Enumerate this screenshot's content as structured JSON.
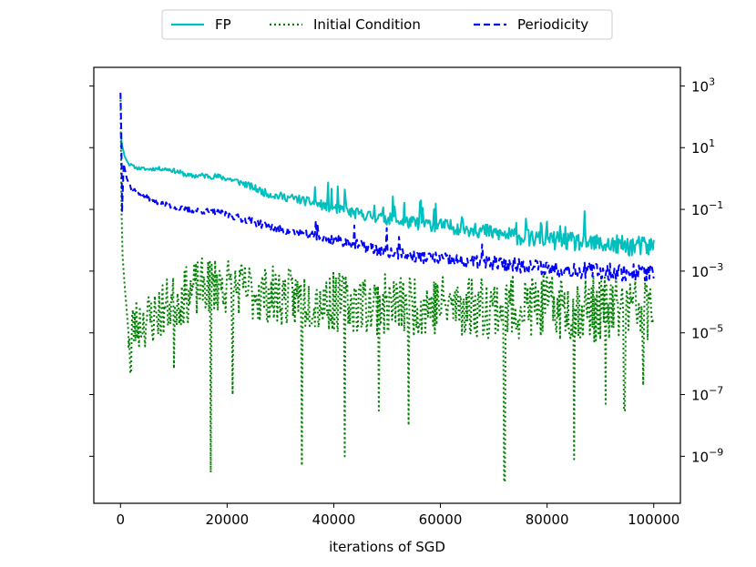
{
  "chart_data": {
    "type": "line",
    "xlabel": "iterations of SGD",
    "ylabel": "",
    "y_scale": "log",
    "y_axis_side": "right",
    "xlim": [
      -5000,
      105000
    ],
    "ylim": [
      3e-11,
      4000
    ],
    "x_ticks": [
      0,
      20000,
      40000,
      60000,
      80000,
      100000
    ],
    "x_tick_labels": [
      "0",
      "20000",
      "40000",
      "60000",
      "80000",
      "100000"
    ],
    "y_ticks": [
      -9,
      -7,
      -5,
      -3,
      -1,
      1,
      3
    ],
    "y_tick_labels": [
      {
        "base": "10",
        "exp": "−9"
      },
      {
        "base": "10",
        "exp": "−7"
      },
      {
        "base": "10",
        "exp": "−5"
      },
      {
        "base": "10",
        "exp": "−3"
      },
      {
        "base": "10",
        "exp": "−1"
      },
      {
        "base": "10",
        "exp": "1"
      },
      {
        "base": "10",
        "exp": "3"
      }
    ],
    "grid": false,
    "legend_position": "top-center, above plot",
    "series": [
      {
        "name": "FP",
        "color": "#00bfbf",
        "style": "solid",
        "points": [
          [
            0,
            30
          ],
          [
            300,
            12
          ],
          [
            800,
            5
          ],
          [
            1500,
            3
          ],
          [
            3000,
            2.2
          ],
          [
            5000,
            2
          ],
          [
            7000,
            2.1
          ],
          [
            9000,
            2
          ],
          [
            11000,
            1.6
          ],
          [
            13000,
            1.2
          ],
          [
            15000,
            1.25
          ],
          [
            17000,
            1.2
          ],
          [
            19000,
            1.1
          ],
          [
            21000,
            0.9
          ],
          [
            23000,
            0.7
          ],
          [
            25000,
            0.5
          ],
          [
            27000,
            0.35
          ],
          [
            29000,
            0.28
          ],
          [
            31000,
            0.25
          ],
          [
            33000,
            0.22
          ],
          [
            35000,
            0.18
          ],
          [
            37000,
            0.15
          ],
          [
            39000,
            0.12
          ],
          [
            41000,
            0.1
          ],
          [
            43000,
            0.08
          ],
          [
            45000,
            0.07
          ],
          [
            47000,
            0.06
          ],
          [
            50000,
            0.05
          ],
          [
            53000,
            0.04
          ],
          [
            56000,
            0.035
          ],
          [
            60000,
            0.03
          ],
          [
            64000,
            0.025
          ],
          [
            68000,
            0.02
          ],
          [
            72000,
            0.015
          ],
          [
            76000,
            0.012
          ],
          [
            80000,
            0.01
          ],
          [
            84000,
            0.009
          ],
          [
            88000,
            0.008
          ],
          [
            92000,
            0.007
          ],
          [
            96000,
            0.0065
          ],
          [
            100000,
            0.006
          ]
        ],
        "noise": [
          0.04,
          0.35
        ],
        "spikes": 26,
        "seed": 11
      },
      {
        "name": "Initial Condition",
        "color": "#008000",
        "style": "dotted",
        "points": [
          [
            0,
            500
          ],
          [
            200,
            0.1
          ],
          [
            400,
            0.003
          ],
          [
            800,
            0.0003
          ],
          [
            1500,
            1e-05
          ],
          [
            3000,
            2e-05
          ],
          [
            6000,
            3e-05
          ],
          [
            9000,
            8e-05
          ],
          [
            12000,
            0.00015
          ],
          [
            15000,
            0.0003
          ],
          [
            18000,
            0.0004
          ],
          [
            21000,
            0.0003
          ],
          [
            25000,
            0.0002
          ],
          [
            30000,
            0.00015
          ],
          [
            40000,
            0.0001
          ],
          [
            50000,
            8e-05
          ],
          [
            60000,
            8e-05
          ],
          [
            70000,
            7e-05
          ],
          [
            80000,
            7e-05
          ],
          [
            90000,
            6e-05
          ],
          [
            100000,
            6e-05
          ]
        ],
        "noise": [
          0.9,
          1.1
        ],
        "dips": [
          [
            1900,
            5e-07
          ],
          [
            10000,
            7e-07
          ],
          [
            16900,
            3e-10
          ],
          [
            21000,
            1e-07
          ],
          [
            34000,
            5e-10
          ],
          [
            42000,
            1e-09
          ],
          [
            48500,
            3e-08
          ],
          [
            54000,
            1e-08
          ],
          [
            72000,
            1.5e-10
          ],
          [
            85000,
            8e-10
          ],
          [
            91000,
            5e-08
          ],
          [
            94500,
            3e-08
          ],
          [
            98000,
            2e-07
          ]
        ],
        "seed": 23
      },
      {
        "name": "Periodicity",
        "color": "#0000ff",
        "style": "dashed",
        "points": [
          [
            0,
            600
          ],
          [
            150,
            30
          ],
          [
            300,
            0.08
          ],
          [
            600,
            3
          ],
          [
            1200,
            1
          ],
          [
            2000,
            0.5
          ],
          [
            4000,
            0.3
          ],
          [
            6000,
            0.2
          ],
          [
            8000,
            0.15
          ],
          [
            10000,
            0.12
          ],
          [
            12000,
            0.1
          ],
          [
            15000,
            0.09
          ],
          [
            18000,
            0.08
          ],
          [
            21000,
            0.06
          ],
          [
            24000,
            0.045
          ],
          [
            27000,
            0.03
          ],
          [
            30000,
            0.022
          ],
          [
            33000,
            0.018
          ],
          [
            36000,
            0.014
          ],
          [
            39000,
            0.011
          ],
          [
            42000,
            0.009
          ],
          [
            46000,
            0.006
          ],
          [
            50000,
            0.004
          ],
          [
            55000,
            0.003
          ],
          [
            60000,
            0.0025
          ],
          [
            65000,
            0.002
          ],
          [
            70000,
            0.0018
          ],
          [
            75000,
            0.0015
          ],
          [
            80000,
            0.0013
          ],
          [
            85000,
            0.0011
          ],
          [
            90000,
            0.001
          ],
          [
            95000,
            0.0009
          ],
          [
            100000,
            0.0009
          ]
        ],
        "noise": [
          0.06,
          0.3
        ],
        "spikes": 8,
        "seed": 37
      }
    ]
  }
}
